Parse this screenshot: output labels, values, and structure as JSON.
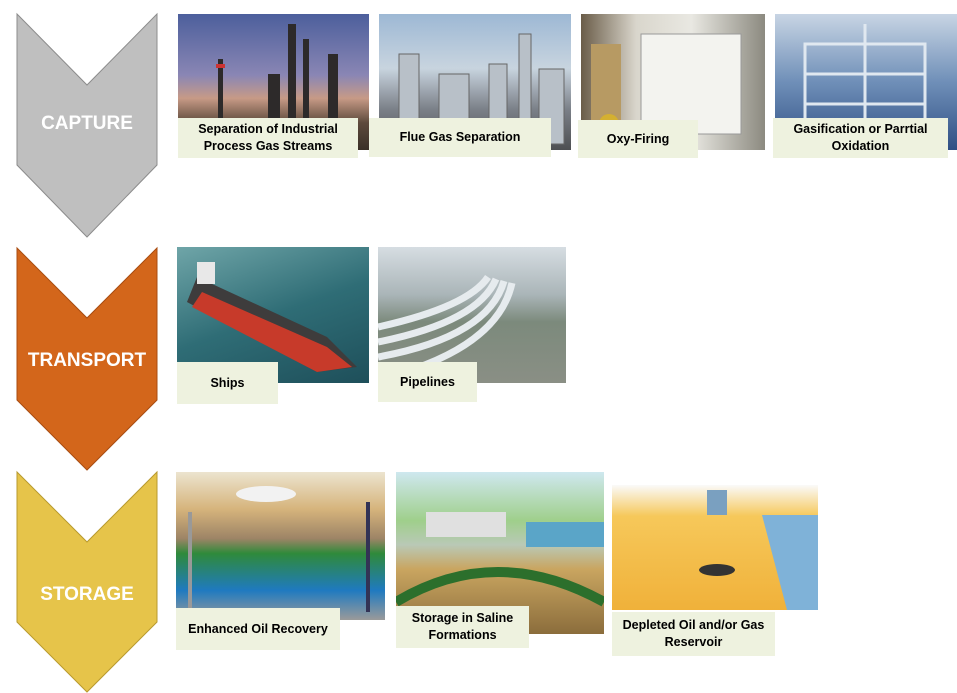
{
  "stages": [
    {
      "label": "CAPTURE",
      "items": [
        {
          "label": "Separation of Industrial Process Gas Streams"
        },
        {
          "label": "Flue Gas Separation"
        },
        {
          "label": "Oxy-Firing"
        },
        {
          "label": "Gasification or Parrtial Oxidation"
        }
      ]
    },
    {
      "label": "TRANSPORT",
      "items": [
        {
          "label": "Ships"
        },
        {
          "label": "Pipelines"
        }
      ]
    },
    {
      "label": "STORAGE",
      "items": [
        {
          "label": "Enhanced Oil Recovery"
        },
        {
          "label": "Storage in Saline Formations"
        },
        {
          "label": "Depleted Oil and/or Gas Reservoir"
        }
      ]
    }
  ]
}
